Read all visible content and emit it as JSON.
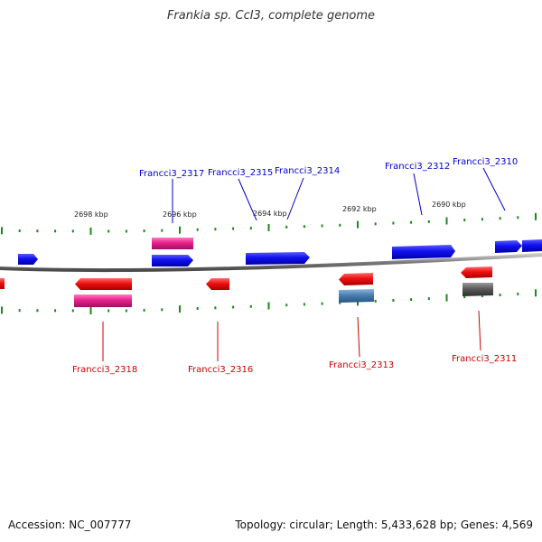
{
  "title": "Frankia sp. CcI3, complete genome",
  "footer": {
    "accession": "Accession: NC_007777",
    "stats": "Topology: circular; Length: 5,433,628 bp; Genes: 4,569"
  },
  "colors": {
    "backbone": "#8a8a8a",
    "tick": "#1a8a1a",
    "forward_gene": "#1010ee",
    "reverse_gene": "#ee1010",
    "pink_feature": "#e8208c",
    "steelblue_feature": "#4a7fb0",
    "gray_feature": "#5a5a5a",
    "forward_label": "#0000cc",
    "reverse_label": "#cc0000"
  },
  "scale_labels": [
    "2698 kbp",
    "2696 kbp",
    "2694 kbp",
    "2692 kbp",
    "2690 kbp"
  ],
  "genes_forward": [
    {
      "name": "Francci3_2317",
      "feature": "CDS"
    },
    {
      "name": "Francci3_2315",
      "feature": "CDS"
    },
    {
      "name": "Francci3_2314",
      "feature": "CDS"
    },
    {
      "name": "Francci3_2312",
      "feature": "CDS"
    },
    {
      "name": "Francci3_2310",
      "feature": "CDS"
    }
  ],
  "genes_reverse": [
    {
      "name": "Francci3_2318",
      "feature": "CDS"
    },
    {
      "name": "Francci3_2316",
      "feature": "CDS"
    },
    {
      "name": "Francci3_2313",
      "feature": "CDS"
    },
    {
      "name": "Francci3_2311",
      "feature": "CDS"
    }
  ]
}
